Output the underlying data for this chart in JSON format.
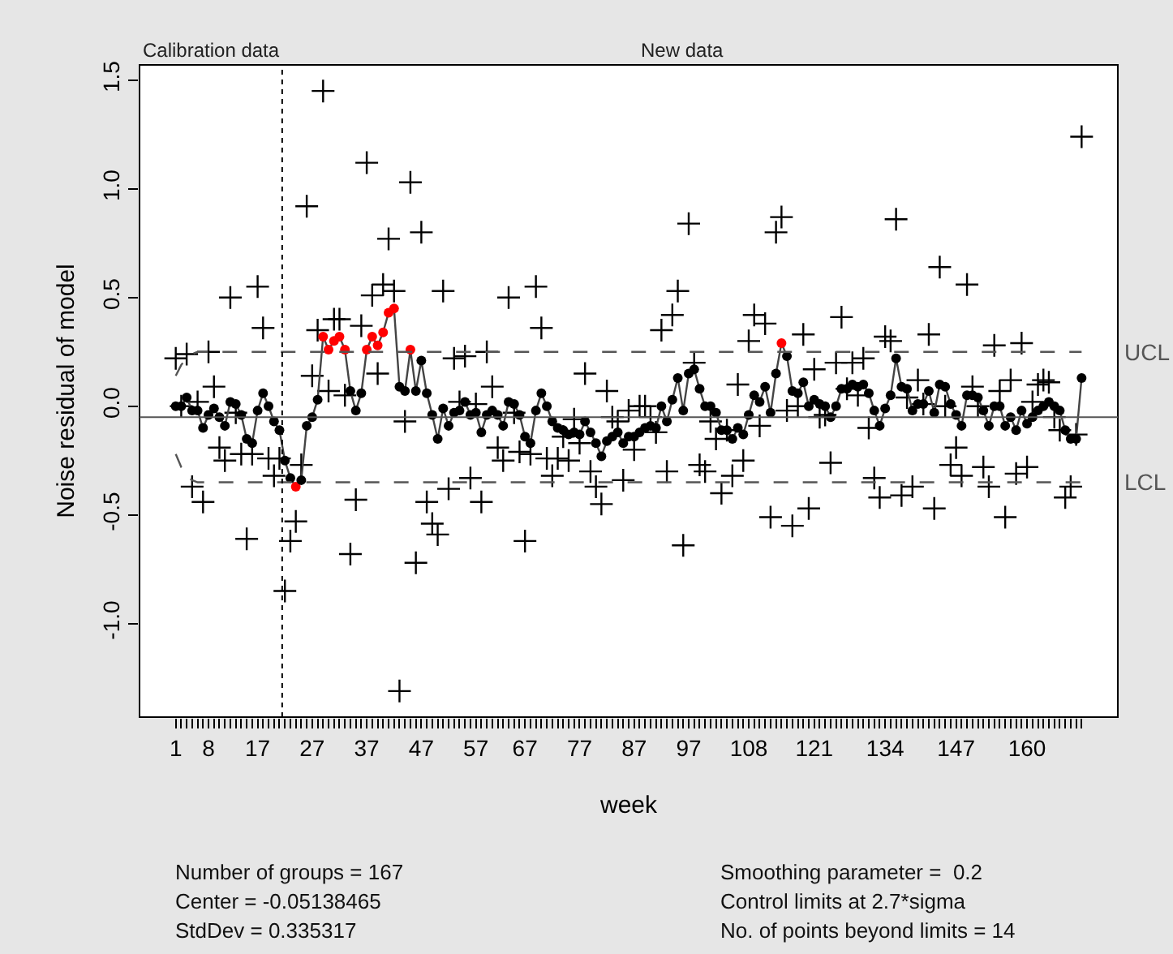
{
  "chart_data": {
    "type": "line",
    "xlabel": "week",
    "ylabel": "Noise residual of model",
    "categories": [
      "1",
      null,
      null,
      null,
      null,
      null,
      "8",
      null,
      null,
      null,
      null,
      null,
      null,
      null,
      null,
      "17",
      null,
      null,
      null,
      null,
      null,
      null,
      null,
      null,
      null,
      "27",
      null,
      null,
      null,
      null,
      null,
      null,
      null,
      null,
      null,
      "37",
      null,
      null,
      null,
      null,
      null,
      null,
      null,
      null,
      null,
      "47",
      null,
      null,
      null,
      null,
      null,
      null,
      null,
      null,
      null,
      "57",
      null,
      null,
      null,
      null,
      null,
      null,
      null,
      null,
      "67",
      null,
      null,
      null,
      null,
      null,
      null,
      null,
      null,
      null,
      "77",
      null,
      null,
      null,
      null,
      null,
      null,
      null,
      null,
      null,
      "87",
      null,
      null,
      null,
      null,
      null,
      null,
      null,
      null,
      null,
      "97",
      null,
      null,
      null,
      null,
      null,
      null,
      null,
      null,
      null,
      null,
      "108",
      null,
      null,
      null,
      null,
      null,
      null,
      null,
      null,
      null,
      null,
      null,
      "121",
      null,
      null,
      null,
      null,
      null,
      null,
      null,
      null,
      null,
      null,
      null,
      null,
      "134",
      null,
      null,
      null,
      null,
      null,
      null,
      null,
      null,
      null,
      null,
      null,
      null,
      "147",
      null,
      null,
      null,
      null,
      null,
      null,
      null,
      null,
      null,
      null,
      null,
      null,
      "160",
      null,
      null,
      null,
      null,
      null,
      null,
      null,
      null,
      null,
      null
    ],
    "series": [
      {
        "type": "scatter",
        "marker": "cross",
        "color": "#000000",
        "values": [
          0.22,
          0.0,
          0.24,
          -0.37,
          0.02,
          -0.44,
          0.25,
          0.09,
          -0.19,
          -0.25,
          0.5,
          -0.03,
          -0.22,
          -0.61,
          -0.22,
          0.55,
          0.36,
          -0.24,
          -0.32,
          -0.24,
          -0.85,
          -0.62,
          -0.53,
          -0.27,
          0.92,
          0.14,
          0.35,
          1.45,
          0.07,
          0.4,
          0.4,
          0.05,
          -0.68,
          -0.43,
          0.37,
          1.12,
          0.51,
          0.15,
          0.56,
          0.77,
          0.53,
          -1.31,
          -0.07,
          1.03,
          -0.72,
          0.8,
          -0.44,
          -0.54,
          -0.59,
          0.53,
          -0.38,
          0.22,
          0.02,
          0.23,
          -0.33,
          0.01,
          -0.44,
          0.25,
          0.09,
          -0.19,
          -0.25,
          0.5,
          -0.03,
          -0.21,
          -0.62,
          -0.22,
          0.55,
          0.36,
          -0.24,
          -0.32,
          -0.24,
          -0.14,
          -0.25,
          -0.06,
          -0.17,
          0.15,
          -0.3,
          -0.37,
          -0.45,
          0.07,
          -0.05,
          -0.07,
          -0.34,
          -0.02,
          -0.2,
          0.0,
          0.0,
          -0.05,
          -0.12,
          0.35,
          -0.3,
          0.42,
          0.53,
          -0.64,
          0.84,
          0.2,
          -0.27,
          -0.3,
          -0.07,
          -0.15,
          -0.4,
          -0.11,
          -0.32,
          0.1,
          -0.25,
          0.3,
          0.42,
          -0.09,
          0.38,
          -0.51,
          0.8,
          0.87,
          -0.02,
          -0.55,
          0.0,
          0.33,
          -0.47,
          0.17,
          -0.05,
          -0.04,
          -0.26,
          0.2,
          0.41,
          0.08,
          0.2,
          0.05,
          0.22,
          -0.1,
          -0.33,
          -0.42,
          0.32,
          0.3,
          0.86,
          -0.41,
          0.04,
          -0.37,
          0.12,
          0.01,
          0.33,
          -0.47,
          0.64,
          0.0,
          -0.27,
          -0.19,
          -0.32,
          0.56,
          0.09,
          0.0,
          -0.28,
          -0.37,
          0.28,
          0.07,
          -0.51,
          0.12,
          -0.31,
          0.29,
          -0.28,
          0.02,
          0.1,
          0.12,
          0.11,
          -0.05,
          -0.11,
          -0.42,
          -0.37,
          -0.13,
          1.24
        ]
      },
      {
        "marker": "circle",
        "color": "#444444",
        "colors": [
          "#000000",
          "#000000",
          "#000000",
          "#000000",
          "#000000",
          "#000000",
          "#000000",
          "#000000",
          "#000000",
          "#000000",
          "#000000",
          "#000000",
          "#000000",
          "#000000",
          "#000000",
          "#000000",
          "#000000",
          "#000000",
          "#000000",
          "#000000",
          "#000000",
          "#000000",
          "#ff0000",
          "#000000",
          "#000000",
          "#000000",
          "#000000",
          "#ff0000",
          "#ff0000",
          "#ff0000",
          "#ff0000",
          "#ff0000",
          "#000000",
          "#000000",
          "#000000",
          "#ff0000",
          "#ff0000",
          "#ff0000",
          "#ff0000",
          "#ff0000",
          "#ff0000",
          "#000000",
          "#000000",
          "#ff0000",
          "#000000",
          "#000000",
          "#000000",
          "#000000",
          "#000000",
          "#000000",
          "#000000",
          "#000000",
          "#000000",
          "#000000",
          "#000000",
          "#000000",
          "#000000",
          "#000000",
          "#000000",
          "#000000",
          "#000000",
          "#000000",
          "#000000",
          "#000000",
          "#000000",
          "#000000",
          "#000000",
          "#000000",
          "#000000",
          "#000000",
          "#000000",
          "#000000",
          "#000000",
          "#000000",
          "#000000",
          "#000000",
          "#000000",
          "#000000",
          "#000000",
          "#000000",
          "#000000",
          "#000000",
          "#000000",
          "#000000",
          "#000000",
          "#000000",
          "#000000",
          "#000000",
          "#000000",
          "#000000",
          "#000000",
          "#000000",
          "#000000",
          "#000000",
          "#000000",
          "#000000",
          "#000000",
          "#000000",
          "#000000",
          "#000000",
          "#000000",
          "#000000",
          "#000000",
          "#000000",
          "#000000",
          "#000000",
          "#000000",
          "#000000",
          "#000000",
          "#000000",
          "#000000",
          "#ff0000",
          "#000000",
          "#000000",
          "#000000",
          "#000000",
          "#000000",
          "#000000",
          "#000000",
          "#000000",
          "#000000",
          "#000000",
          "#000000",
          "#000000",
          "#000000",
          "#000000",
          "#000000",
          "#000000",
          "#000000",
          "#000000",
          "#000000",
          "#000000",
          "#000000",
          "#000000",
          "#000000",
          "#000000",
          "#000000",
          "#000000",
          "#000000",
          "#000000",
          "#000000",
          "#000000",
          "#000000",
          "#000000",
          "#000000",
          "#000000",
          "#000000",
          "#000000",
          "#000000",
          "#000000",
          "#000000",
          "#000000",
          "#000000",
          "#000000",
          "#000000",
          "#000000",
          "#000000",
          "#000000",
          "#000000",
          "#000000",
          "#000000",
          "#000000",
          "#000000",
          "#000000",
          "#000000",
          "#000000",
          "#000000"
        ],
        "values": [
          0.0,
          0.0,
          0.04,
          -0.02,
          -0.02,
          -0.1,
          -0.04,
          -0.01,
          -0.05,
          -0.09,
          0.02,
          0.01,
          -0.04,
          -0.15,
          -0.17,
          -0.02,
          0.06,
          0.0,
          -0.07,
          -0.11,
          -0.25,
          -0.33,
          -0.37,
          -0.34,
          -0.09,
          -0.05,
          0.03,
          0.32,
          0.26,
          0.3,
          0.32,
          0.26,
          0.07,
          -0.02,
          0.06,
          0.26,
          0.32,
          0.28,
          0.34,
          0.43,
          0.45,
          0.09,
          0.07,
          0.26,
          0.07,
          0.21,
          0.06,
          -0.04,
          -0.15,
          -0.01,
          -0.09,
          -0.03,
          -0.02,
          0.02,
          -0.04,
          -0.03,
          -0.12,
          -0.04,
          -0.02,
          -0.04,
          -0.09,
          0.02,
          0.01,
          -0.04,
          -0.14,
          -0.17,
          -0.02,
          0.06,
          0.0,
          -0.07,
          -0.1,
          -0.11,
          -0.13,
          -0.12,
          -0.13,
          -0.07,
          -0.12,
          -0.17,
          -0.23,
          -0.16,
          -0.14,
          -0.12,
          -0.17,
          -0.14,
          -0.14,
          -0.12,
          -0.1,
          -0.09,
          -0.1,
          0.0,
          -0.07,
          0.03,
          0.13,
          -0.02,
          0.15,
          0.17,
          0.08,
          0.0,
          0.0,
          -0.03,
          -0.11,
          -0.11,
          -0.15,
          -0.1,
          -0.13,
          -0.04,
          0.05,
          0.02,
          0.09,
          -0.03,
          0.15,
          0.29,
          0.23,
          0.07,
          0.06,
          0.11,
          0.0,
          0.03,
          0.01,
          0.0,
          -0.05,
          0.0,
          0.08,
          0.08,
          0.1,
          0.09,
          0.1,
          0.06,
          -0.02,
          -0.09,
          -0.01,
          0.05,
          0.22,
          0.09,
          0.08,
          -0.02,
          0.01,
          0.01,
          0.07,
          -0.03,
          0.1,
          0.09,
          0.01,
          -0.04,
          -0.09,
          0.05,
          0.05,
          0.04,
          -0.02,
          -0.09,
          0.0,
          0.0,
          -0.09,
          -0.05,
          -0.11,
          -0.02,
          -0.08,
          -0.05,
          -0.02,
          0.0,
          0.02,
          0.0,
          -0.02,
          -0.11,
          -0.15,
          -0.15,
          0.13
        ]
      },
      {
        "name": "UCL",
        "marker": "none",
        "line_style": "dashed",
        "color": "#555555",
        "values": [
          0.14,
          0.19,
          0.22,
          0.24,
          0.25,
          0.25,
          0.25,
          0.25,
          0.25,
          0.25,
          0.25,
          0.25,
          0.25,
          0.25,
          0.25,
          0.25,
          0.25,
          0.25,
          0.25,
          0.25,
          0.25,
          0.25,
          0.25,
          0.25,
          0.25,
          0.25,
          0.25,
          0.25,
          0.25,
          0.25,
          0.25,
          0.25,
          0.25,
          0.25,
          0.25,
          0.25,
          0.25,
          0.25,
          0.25,
          0.25,
          0.25,
          0.25,
          0.25,
          0.25,
          0.25,
          0.25,
          0.25,
          0.25,
          0.25,
          0.25,
          0.25,
          0.25,
          0.25,
          0.25,
          0.25,
          0.25,
          0.25,
          0.25,
          0.25,
          0.25,
          0.25,
          0.25,
          0.25,
          0.25,
          0.25,
          0.25,
          0.25,
          0.25,
          0.25,
          0.25,
          0.25,
          0.25,
          0.25,
          0.25,
          0.25,
          0.25,
          0.25,
          0.25,
          0.25,
          0.25,
          0.25,
          0.25,
          0.25,
          0.25,
          0.25,
          0.25,
          0.25,
          0.25,
          0.25,
          0.25,
          0.25,
          0.25,
          0.25,
          0.25,
          0.25,
          0.25,
          0.25,
          0.25,
          0.25,
          0.25,
          0.25,
          0.25,
          0.25,
          0.25,
          0.25,
          0.25,
          0.25,
          0.25,
          0.25,
          0.25,
          0.25,
          0.25,
          0.25,
          0.25,
          0.25,
          0.25,
          0.25,
          0.25,
          0.25,
          0.25,
          0.25,
          0.25,
          0.25,
          0.25,
          0.25,
          0.25,
          0.25,
          0.25,
          0.25,
          0.25,
          0.25,
          0.25,
          0.25,
          0.25,
          0.25,
          0.25,
          0.25,
          0.25,
          0.25,
          0.25,
          0.25,
          0.25,
          0.25,
          0.25,
          0.25,
          0.25,
          0.25,
          0.25,
          0.25,
          0.25,
          0.25,
          0.25,
          0.25,
          0.25,
          0.25,
          0.25,
          0.25,
          0.25,
          0.25,
          0.25,
          0.25,
          0.25,
          0.25,
          0.25,
          0.25,
          0.25,
          0.25
        ]
      },
      {
        "name": "LCL",
        "marker": "none",
        "line_style": "dashed",
        "color": "#555555",
        "values": [
          -0.22,
          -0.28,
          -0.32,
          -0.34,
          -0.35,
          -0.35,
          -0.35,
          -0.35,
          -0.35,
          -0.35,
          -0.35,
          -0.35,
          -0.35,
          -0.35,
          -0.35,
          -0.35,
          -0.35,
          -0.35,
          -0.35,
          -0.35,
          -0.35,
          -0.35,
          -0.35,
          -0.35,
          -0.35,
          -0.35,
          -0.35,
          -0.35,
          -0.35,
          -0.35,
          -0.35,
          -0.35,
          -0.35,
          -0.35,
          -0.35,
          -0.35,
          -0.35,
          -0.35,
          -0.35,
          -0.35,
          -0.35,
          -0.35,
          -0.35,
          -0.35,
          -0.35,
          -0.35,
          -0.35,
          -0.35,
          -0.35,
          -0.35,
          -0.35,
          -0.35,
          -0.35,
          -0.35,
          -0.35,
          -0.35,
          -0.35,
          -0.35,
          -0.35,
          -0.35,
          -0.35,
          -0.35,
          -0.35,
          -0.35,
          -0.35,
          -0.35,
          -0.35,
          -0.35,
          -0.35,
          -0.35,
          -0.35,
          -0.35,
          -0.35,
          -0.35,
          -0.35,
          -0.35,
          -0.35,
          -0.35,
          -0.35,
          -0.35,
          -0.35,
          -0.35,
          -0.35,
          -0.35,
          -0.35,
          -0.35,
          -0.35,
          -0.35,
          -0.35,
          -0.35,
          -0.35,
          -0.35,
          -0.35,
          -0.35,
          -0.35,
          -0.35,
          -0.35,
          -0.35,
          -0.35,
          -0.35,
          -0.35,
          -0.35,
          -0.35,
          -0.35,
          -0.35,
          -0.35,
          -0.35,
          -0.35,
          -0.35,
          -0.35,
          -0.35,
          -0.35,
          -0.35,
          -0.35,
          -0.35,
          -0.35,
          -0.35,
          -0.35,
          -0.35,
          -0.35,
          -0.35,
          -0.35,
          -0.35,
          -0.35,
          -0.35,
          -0.35,
          -0.35,
          -0.35,
          -0.35,
          -0.35,
          -0.35,
          -0.35,
          -0.35,
          -0.35,
          -0.35,
          -0.35,
          -0.35,
          -0.35,
          -0.35,
          -0.35,
          -0.35,
          -0.35,
          -0.35,
          -0.35,
          -0.35,
          -0.35,
          -0.35,
          -0.35,
          -0.35,
          -0.35,
          -0.35,
          -0.35,
          -0.35,
          -0.35,
          -0.35,
          -0.35,
          -0.35,
          -0.35,
          -0.35,
          -0.35,
          -0.35,
          -0.35,
          -0.35,
          -0.35,
          -0.35,
          -0.35,
          -0.35
        ]
      }
    ],
    "ref_lines": [
      {
        "axis": "y",
        "value": -0.05,
        "color": "#555555"
      }
    ],
    "ylim": [
      -1.43,
      1.57
    ],
    "yticks": [
      {
        "value": -1.0,
        "label": "-1.0"
      },
      {
        "value": -0.5,
        "label": "-0.5"
      },
      {
        "value": 0,
        "label": "0.0"
      },
      {
        "value": 0.5,
        "label": "0.5"
      },
      {
        "value": 1.0,
        "label": "1.0"
      },
      {
        "value": 1.5,
        "label": "1.5"
      }
    ],
    "legend": false,
    "annotations": [
      "Calibration data",
      "New data",
      "Number of groups = 167",
      "Center = -0.05138465",
      "StdDev = 0.335317",
      "Smoothing parameter =  0.2",
      "Control limits at 2.7*sigma",
      "No. of points beyond limits = 14"
    ]
  }
}
